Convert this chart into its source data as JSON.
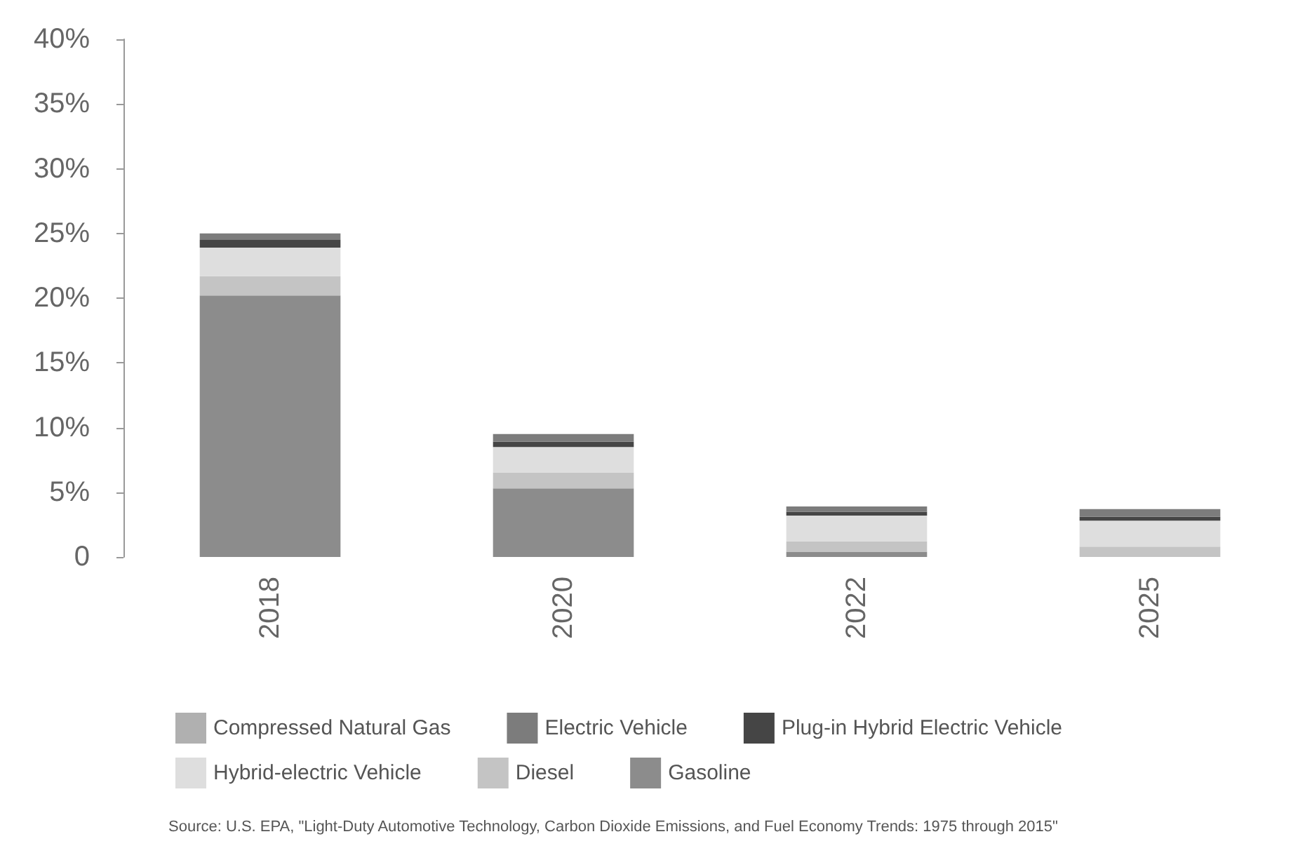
{
  "chart_data": {
    "type": "bar",
    "stacked": true,
    "categories": [
      "2018",
      "2020",
      "2022",
      "2025"
    ],
    "series": [
      {
        "name": "Gasoline",
        "color": "#8c8c8c",
        "values": [
          20.2,
          5.3,
          0.4,
          0
        ]
      },
      {
        "name": "Diesel",
        "color": "#c4c4c4",
        "values": [
          1.5,
          1.2,
          0.8,
          0.8
        ]
      },
      {
        "name": "Hybrid-electric Vehicle",
        "color": "#dedede",
        "values": [
          2.2,
          2.0,
          2.0,
          2.0
        ]
      },
      {
        "name": "Plug-in Hybrid Electric Vehicle",
        "color": "#454545",
        "values": [
          0.6,
          0.4,
          0.3,
          0.3
        ]
      },
      {
        "name": "Electric Vehicle",
        "color": "#7c7c7c",
        "values": [
          0.5,
          0.6,
          0.4,
          0.6
        ]
      },
      {
        "name": "Compressed Natural Gas",
        "color": "#b0b0b0",
        "values": [
          0,
          0,
          0,
          0
        ]
      }
    ],
    "ylim": [
      0,
      40
    ],
    "yticks": [
      {
        "value": 0,
        "label": "0"
      },
      {
        "value": 5,
        "label": "5%"
      },
      {
        "value": 10,
        "label": "10%"
      },
      {
        "value": 15,
        "label": "15%"
      },
      {
        "value": 20,
        "label": "20%"
      },
      {
        "value": 25,
        "label": "25%"
      },
      {
        "value": 30,
        "label": "30%"
      },
      {
        "value": 35,
        "label": "35%"
      },
      {
        "value": 40,
        "label": "40%"
      }
    ],
    "grid": false,
    "legend": "bottom",
    "annotations": [
      "Source: U.S. EPA, \"Light-Duty Automotive Technology, Carbon Dioxide Emissions, and Fuel Economy Trends: 1975 through 2015\""
    ]
  }
}
